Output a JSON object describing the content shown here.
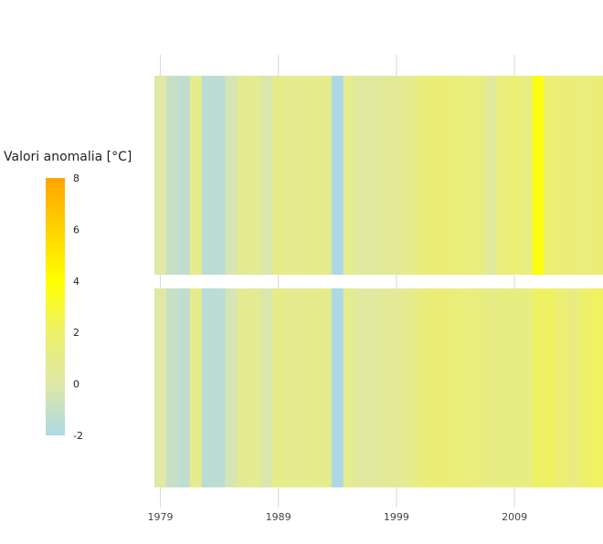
{
  "chart_data": {
    "type": "heatmap",
    "title": "",
    "xlabel": "",
    "ylabel": "",
    "legend": {
      "title": "Valori anomalia [°C]",
      "placement": "left",
      "range": [
        -2,
        8
      ],
      "ticks": [
        8,
        6,
        4,
        2,
        0,
        -2
      ],
      "colors": {
        "-2": "#add8e6",
        "0": "#dfe8a6",
        "2": "#eef06a",
        "4": "#ffff00",
        "8": "#ffa500"
      }
    },
    "x_axis": {
      "ticks": [
        "1979",
        "1989",
        "1999",
        "2009"
      ],
      "range": [
        1978.5,
        2016.5
      ],
      "grid": true
    },
    "x": [
      1979,
      1980,
      1981,
      1982,
      1983,
      1984,
      1985,
      1986,
      1987,
      1988,
      1989,
      1990,
      1991,
      1992,
      1993,
      1994,
      1995,
      1996,
      1997,
      1998,
      1999,
      2000,
      2001,
      2002,
      2003,
      2004,
      2005,
      2006,
      2007,
      2008,
      2009,
      2010,
      2011,
      2012,
      2013,
      2014,
      2015,
      2016
    ],
    "series": [
      {
        "values": [
          0.1,
          -1.0,
          -1.3,
          0.9,
          -1.5,
          -1.4,
          -0.4,
          0.6,
          0.7,
          -0.2,
          1.0,
          0.8,
          0.8,
          0.9,
          0.9,
          -2.0,
          0.7,
          0.2,
          0.2,
          0.4,
          0.5,
          0.8,
          1.3,
          1.6,
          1.6,
          1.5,
          1.4,
          1.3,
          0.3,
          1.4,
          1.7,
          1.2,
          3.7,
          1.7,
          1.5,
          1.5,
          1.4,
          1.6
        ]
      },
      {
        "values": [
          0.1,
          -1.0,
          -1.3,
          0.9,
          -1.5,
          -1.4,
          -0.4,
          0.6,
          0.7,
          -0.2,
          1.0,
          0.8,
          0.8,
          0.9,
          0.9,
          -2.0,
          0.7,
          0.2,
          0.2,
          0.4,
          0.5,
          0.8,
          1.3,
          1.6,
          1.6,
          1.5,
          1.4,
          1.3,
          1.1,
          1.2,
          1.2,
          1.2,
          2.1,
          2.1,
          1.7,
          1.3,
          2.0,
          2.2
        ]
      }
    ]
  }
}
